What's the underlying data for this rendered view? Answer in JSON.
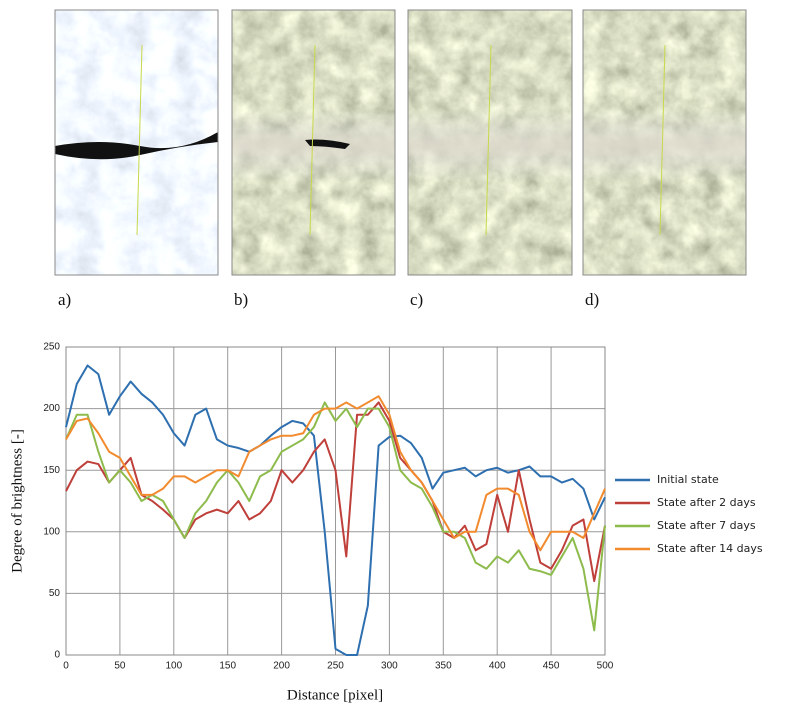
{
  "panel_labels": [
    "a)",
    "b)",
    "c)",
    "d)"
  ],
  "chart_data": {
    "type": "line",
    "x_label": "Distance [pixel]",
    "y_label": "Degree of brightness [-]",
    "x": [
      0,
      10,
      20,
      30,
      40,
      50,
      60,
      70,
      80,
      90,
      100,
      110,
      120,
      130,
      140,
      150,
      160,
      170,
      180,
      190,
      200,
      210,
      220,
      230,
      240,
      250,
      260,
      270,
      280,
      290,
      300,
      310,
      320,
      330,
      340,
      350,
      360,
      370,
      380,
      390,
      400,
      410,
      420,
      430,
      440,
      450,
      460,
      470,
      480,
      490,
      500
    ],
    "series": [
      {
        "name": "Initial state",
        "color": "#2e6fb0",
        "values": [
          185,
          220,
          235,
          228,
          195,
          210,
          222,
          212,
          205,
          195,
          180,
          170,
          195,
          200,
          175,
          170,
          168,
          165,
          170,
          178,
          185,
          190,
          188,
          178,
          100,
          5,
          0,
          0,
          40,
          170,
          177,
          178,
          172,
          160,
          135,
          148,
          150,
          152,
          145,
          150,
          152,
          148,
          150,
          153,
          145,
          145,
          140,
          143,
          135,
          110,
          128
        ]
      },
      {
        "name": "State after 2 days",
        "color": "#bf3f3a",
        "values": [
          133,
          150,
          157,
          155,
          140,
          150,
          160,
          130,
          125,
          118,
          110,
          95,
          110,
          115,
          118,
          115,
          125,
          110,
          115,
          125,
          150,
          140,
          150,
          165,
          175,
          150,
          80,
          195,
          195,
          205,
          190,
          160,
          150,
          140,
          125,
          100,
          95,
          105,
          85,
          90,
          130,
          100,
          150,
          110,
          75,
          70,
          85,
          105,
          110,
          60,
          105
        ]
      },
      {
        "name": "State after 7 days",
        "color": "#8dbb4c",
        "values": [
          175,
          195,
          195,
          165,
          140,
          150,
          140,
          125,
          130,
          125,
          110,
          95,
          115,
          125,
          140,
          150,
          140,
          125,
          145,
          150,
          165,
          170,
          175,
          185,
          205,
          190,
          200,
          185,
          200,
          200,
          185,
          150,
          140,
          135,
          120,
          100,
          100,
          95,
          75,
          70,
          80,
          75,
          85,
          70,
          68,
          65,
          80,
          95,
          70,
          20,
          105
        ]
      },
      {
        "name": "State after 14 days",
        "color": "#f28a2e",
        "values": [
          175,
          190,
          192,
          180,
          165,
          160,
          145,
          130,
          130,
          135,
          145,
          145,
          140,
          145,
          150,
          150,
          145,
          165,
          170,
          175,
          178,
          178,
          180,
          195,
          200,
          200,
          205,
          200,
          205,
          210,
          195,
          165,
          150,
          140,
          125,
          110,
          95,
          100,
          100,
          130,
          135,
          135,
          130,
          100,
          85,
          100,
          100,
          100,
          95,
          115,
          135
        ]
      }
    ],
    "xlim": [
      0,
      500
    ],
    "xticks": [
      0,
      50,
      100,
      150,
      200,
      250,
      300,
      350,
      400,
      450,
      500
    ],
    "ylim": [
      0,
      250
    ],
    "yticks": [
      0,
      50,
      100,
      150,
      200,
      250
    ],
    "grid": true,
    "legend": "right"
  }
}
